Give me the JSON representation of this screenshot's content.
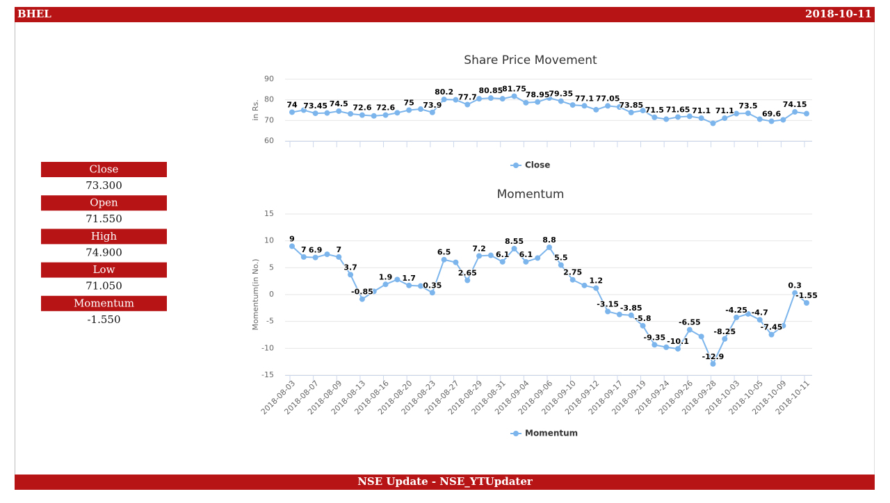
{
  "header": {
    "symbol": "BHEL",
    "date": "2018-10-11"
  },
  "summary": [
    {
      "label": "Close",
      "value": "73.300"
    },
    {
      "label": "Open",
      "value": "71.550"
    },
    {
      "label": "High",
      "value": "74.900"
    },
    {
      "label": "Low",
      "value": "71.050"
    },
    {
      "label": "Momentum",
      "value": "-1.550"
    }
  ],
  "footer": "NSE Update - NSE_YTUpdater",
  "chart_data": [
    {
      "type": "line",
      "title": "Share Price Movement",
      "y_label": "in Rs.",
      "ylim": [
        60,
        90
      ],
      "yticks": [
        60,
        70,
        80,
        90
      ],
      "grid": true,
      "series": [
        {
          "name": "Close",
          "color": "#7cb5ec",
          "values": [
            74,
            75,
            73.45,
            73.6,
            74.5,
            73.2,
            72.6,
            72.2,
            72.6,
            73.7,
            75,
            75.5,
            73.9,
            80.2,
            80,
            77.7,
            80.5,
            80.85,
            80.5,
            81.75,
            78.6,
            78.95,
            80.9,
            79.35,
            77.5,
            77.1,
            75.2,
            77.05,
            76.5,
            73.85,
            74.8,
            71.5,
            70.6,
            71.65,
            72,
            71.1,
            68.6,
            71.1,
            73.3,
            73.5,
            70.6,
            69.6,
            70.3,
            74.15,
            73.3
          ],
          "value_labels": [
            "74",
            null,
            "73.45",
            null,
            "74.5",
            null,
            "72.6",
            null,
            "72.6",
            null,
            "75",
            null,
            "73.9",
            "80.2",
            null,
            "77.7",
            null,
            "80.85",
            null,
            "81.75",
            null,
            "78.95",
            null,
            "79.35",
            null,
            "77.1",
            null,
            "77.05",
            null,
            "73.85",
            null,
            "71.5",
            null,
            "71.65",
            null,
            "71.1",
            null,
            "71.1",
            null,
            "73.5",
            null,
            "69.6",
            null,
            "74.15",
            null
          ]
        }
      ]
    },
    {
      "type": "line",
      "title": "Momentum",
      "y_label": "Momentum(in No.)",
      "ylim": [
        -15,
        15
      ],
      "yticks": [
        -15,
        -10,
        -5,
        0,
        5,
        10,
        15
      ],
      "grid": true,
      "categories": [
        "2018-08-03",
        null,
        "2018-08-07",
        null,
        "2018-08-09",
        null,
        "2018-08-13",
        null,
        "2018-08-16",
        null,
        "2018-08-20",
        null,
        "2018-08-23",
        null,
        "2018-08-27",
        null,
        "2018-08-29",
        null,
        "2018-08-31",
        null,
        "2018-09-04",
        null,
        "2018-09-06",
        null,
        "2018-09-10",
        null,
        "2018-09-12",
        null,
        "2018-09-17",
        null,
        "2018-09-19",
        null,
        "2018-09-24",
        null,
        "2018-09-26",
        null,
        "2018-09-28",
        null,
        "2018-10-03",
        null,
        "2018-10-05",
        null,
        "2018-10-09",
        null,
        "2018-10-11"
      ],
      "series": [
        {
          "name": "Momentum",
          "color": "#7cb5ec",
          "values": [
            9,
            7,
            6.9,
            7.5,
            7,
            3.7,
            -0.85,
            0.6,
            1.9,
            2.8,
            1.7,
            1.6,
            0.35,
            6.5,
            6,
            2.65,
            7.2,
            7.3,
            6.1,
            8.55,
            6.1,
            6.8,
            8.8,
            5.5,
            2.75,
            1.7,
            1.2,
            -3.15,
            -3.7,
            -3.85,
            -5.8,
            -9.35,
            -9.8,
            -10.1,
            -6.55,
            -7.8,
            -12.9,
            -8.25,
            -4.25,
            -3.6,
            -4.7,
            -7.45,
            -5.8,
            0.3,
            -1.55
          ],
          "value_labels": [
            "9",
            "7",
            "6.9",
            null,
            "7",
            "3.7",
            "-0.85",
            null,
            "1.9",
            null,
            "1.7",
            null,
            "0.35",
            "6.5",
            null,
            "2.65",
            "7.2",
            null,
            "6.1",
            "8.55",
            "6.1",
            null,
            "8.8",
            "5.5",
            "2.75",
            null,
            "1.2",
            "-3.15",
            null,
            "-3.85",
            "-5.8",
            "-9.35",
            null,
            "-10.1",
            "-6.55",
            null,
            "-12.9",
            "-8.25",
            "-4.25",
            null,
            "-4.7",
            "-7.45",
            null,
            "0.3",
            "-1.55"
          ]
        }
      ]
    }
  ]
}
